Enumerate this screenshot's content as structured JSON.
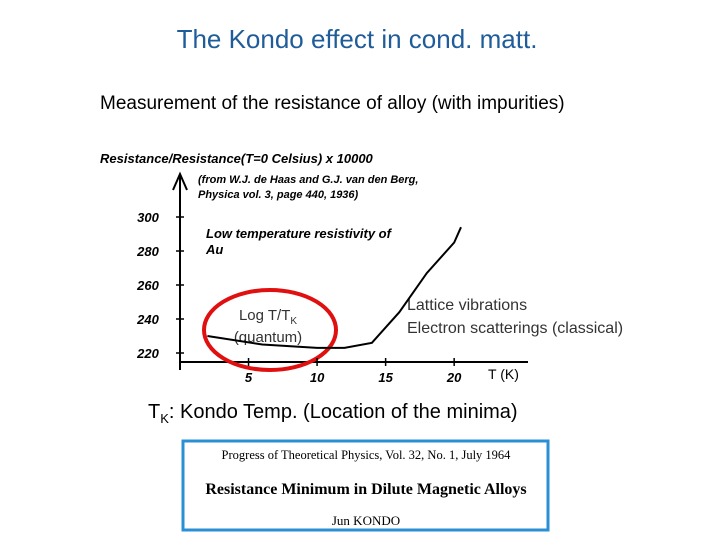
{
  "slide": {
    "title": "The Kondo effect in cond. matt.",
    "subtitle": "Measurement of the resistance of alloy (with impurities)",
    "quantum_label": {
      "main": "Log T/T",
      "sub": "K",
      "line2": "(quantum)"
    },
    "classical_label": {
      "line1": "Lattice vibrations",
      "line2": "Electron scatterings (classical)"
    },
    "x_unit": "T (K)",
    "kondo_note": {
      "main": "T",
      "sub": "K",
      "rest": ": Kondo Temp. (Location of the minima)"
    },
    "reference": {
      "journal": "Progress of Theoretical Physics, Vol. 32, No. 1, July 1964",
      "paper_title": "Resistance Minimum in Dilute Magnetic Alloys",
      "author": "Jun KONDO"
    }
  },
  "chart_data": {
    "type": "line",
    "title": "Resistance/Resistance(T=0 Celsius) x 10000",
    "annotations": [
      "(from W.J. de Haas and G.J. van den Berg,",
      "Physica vol. 3, page 440, 1936)",
      "Low temperature resistivity of",
      "Au"
    ],
    "x": [
      2,
      6,
      10,
      12,
      14,
      16,
      18,
      20,
      20.5
    ],
    "values": [
      230,
      225,
      223,
      223,
      226,
      244,
      267,
      285,
      294
    ],
    "color": "#000000",
    "xlim": [
      0,
      24
    ],
    "ylim": [
      210,
      310
    ],
    "xticks": [
      5,
      10,
      15,
      20
    ],
    "yticks": [
      220,
      240,
      260,
      280,
      300
    ]
  }
}
